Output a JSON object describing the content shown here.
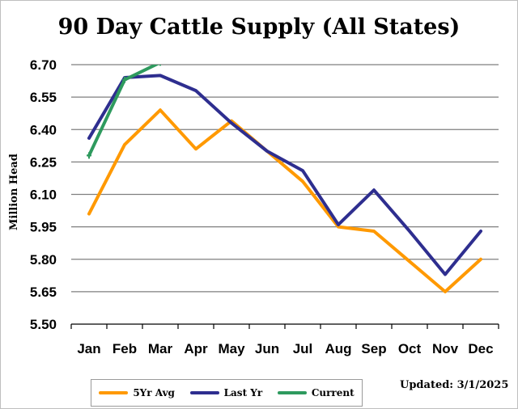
{
  "chart_data": {
    "type": "line",
    "title": "90 Day Cattle Supply (All States)",
    "xlabel": "",
    "ylabel": "Million Head",
    "categories": [
      "Jan",
      "Feb",
      "Mar",
      "Apr",
      "May",
      "Jun",
      "Jul",
      "Aug",
      "Sep",
      "Oct",
      "Nov",
      "Dec"
    ],
    "ylim": [
      5.5,
      6.7
    ],
    "yticks": [
      "6.70",
      "6.55",
      "6.40",
      "6.25",
      "6.10",
      "5.95",
      "5.80",
      "5.65",
      "5.50"
    ],
    "grid": true,
    "legend_position": "bottom",
    "series": [
      {
        "name": "5Yr Avg",
        "color": "#ff9900",
        "values": [
          6.01,
          6.33,
          6.49,
          6.31,
          6.44,
          6.3,
          6.16,
          5.95,
          5.93,
          5.79,
          5.65,
          5.8
        ]
      },
      {
        "name": "Last Yr",
        "color": "#2e2e8f",
        "values": [
          6.36,
          6.64,
          6.65,
          6.58,
          6.43,
          6.3,
          6.21,
          5.96,
          6.12,
          5.93,
          5.73,
          5.93
        ]
      },
      {
        "name": "Current",
        "color": "#2e9a5e",
        "values": [
          6.28,
          6.63,
          6.71,
          null,
          null,
          null,
          null,
          null,
          null,
          null,
          null,
          null
        ]
      }
    ]
  },
  "footer": {
    "updated": "Updated: 3/1/2025"
  }
}
